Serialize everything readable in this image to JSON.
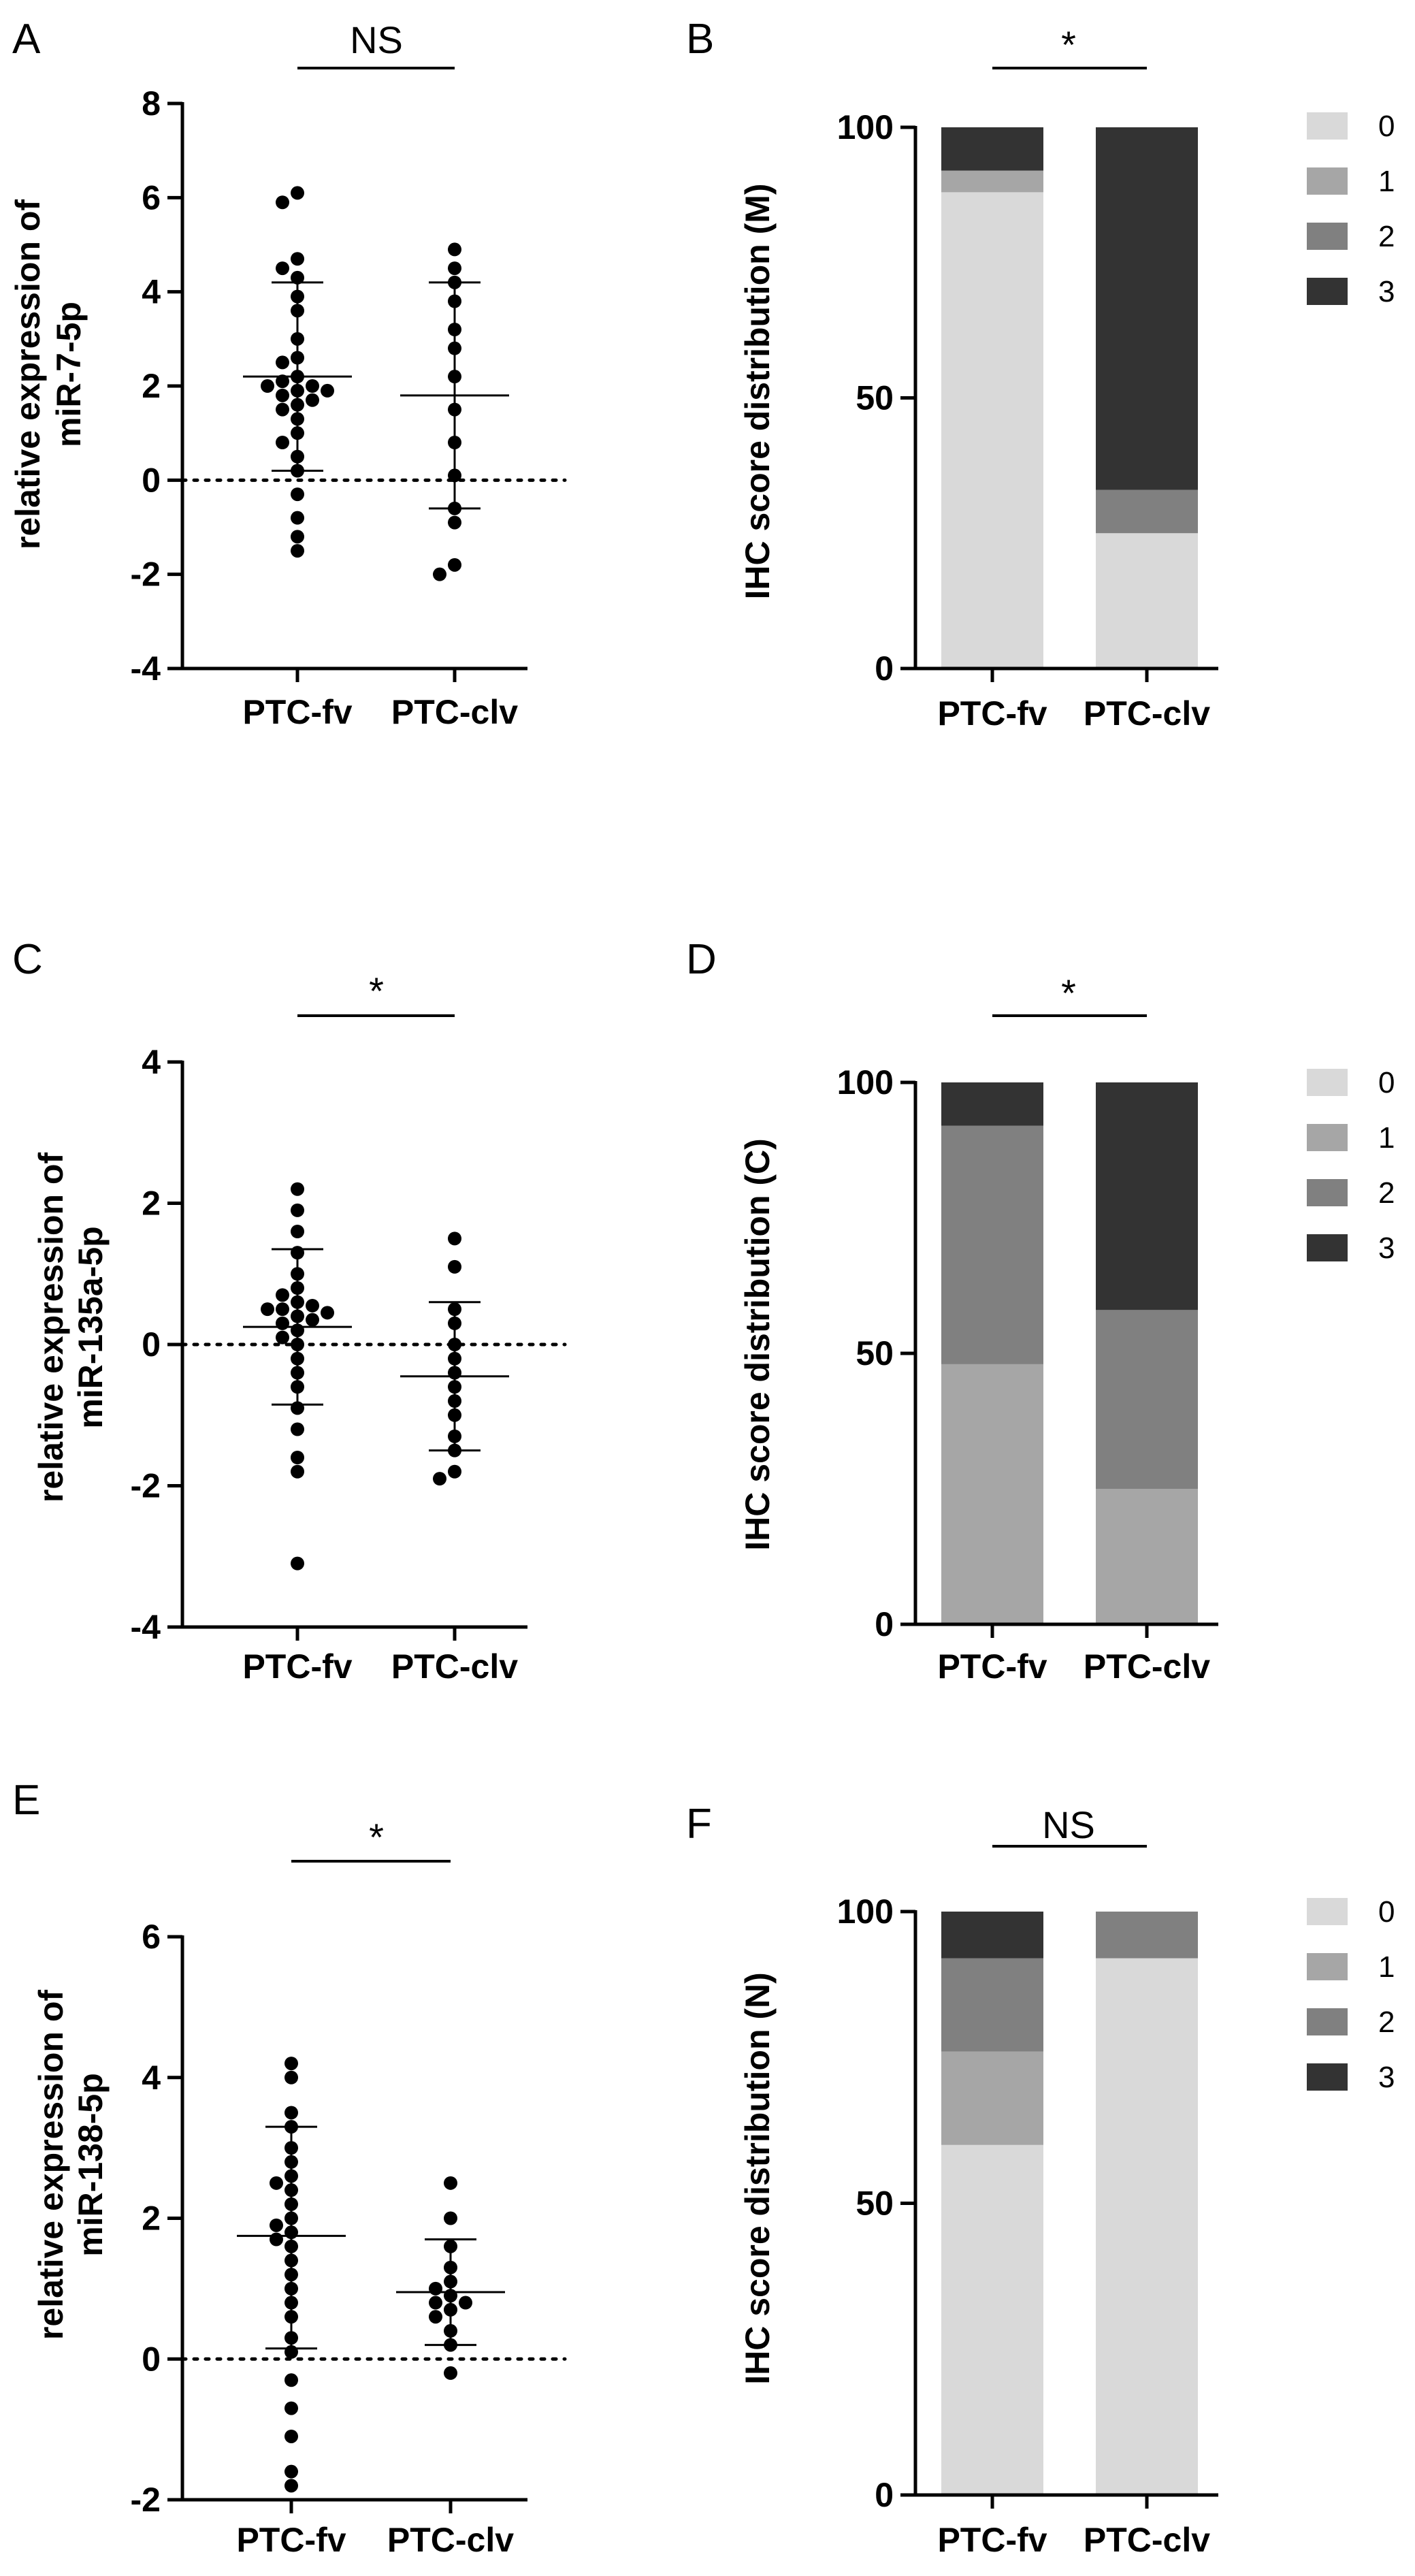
{
  "figure": {
    "colors": {
      "score0": "#d9d9d9",
      "score1": "#a6a6a6",
      "score2": "#808080",
      "score3": "#333333",
      "axis": "#000000"
    }
  },
  "chart_data": [
    {
      "panel": "A",
      "type": "scatter",
      "ylabel": "relative expression of miR-7-5p",
      "ylabel_lines": [
        "relative expression of",
        "miR-7-5p"
      ],
      "categories": [
        "PTC-fv",
        "PTC-clv"
      ],
      "ylim": [
        -4,
        8
      ],
      "yticks": [
        -4,
        -2,
        0,
        2,
        4,
        6,
        8
      ],
      "significance": "NS",
      "groups": [
        {
          "name": "PTC-fv",
          "mean": 2.2,
          "sd_upper": 4.2,
          "sd_lower": 0.2,
          "points": [
            6.1,
            5.9,
            4.7,
            4.5,
            4.3,
            3.9,
            3.6,
            3.0,
            2.6,
            2.5,
            2.2,
            2.1,
            2.0,
            2.0,
            1.9,
            1.9,
            1.8,
            1.7,
            1.6,
            1.5,
            1.3,
            1.0,
            0.8,
            0.5,
            0.2,
            -0.3,
            -0.8,
            -1.2,
            -1.5
          ]
        },
        {
          "name": "PTC-clv",
          "mean": 1.8,
          "sd_upper": 4.2,
          "sd_lower": -0.6,
          "points": [
            4.9,
            4.5,
            4.2,
            3.8,
            3.2,
            2.8,
            2.2,
            1.5,
            0.8,
            0.1,
            -0.6,
            -0.9,
            -1.8,
            -2.0
          ]
        }
      ]
    },
    {
      "panel": "B",
      "type": "bar",
      "ylabel": "IHC score distribution  (M)",
      "categories": [
        "PTC-fv",
        "PTC-clv"
      ],
      "ylim": [
        0,
        100
      ],
      "yticks": [
        0,
        50,
        100
      ],
      "significance": "*",
      "legend": [
        "0",
        "1",
        "2",
        "3"
      ],
      "series": [
        {
          "name": "0",
          "values": [
            88,
            25
          ]
        },
        {
          "name": "1",
          "values": [
            4,
            0
          ]
        },
        {
          "name": "2",
          "values": [
            0,
            8
          ]
        },
        {
          "name": "3",
          "values": [
            8,
            67
          ]
        }
      ]
    },
    {
      "panel": "C",
      "type": "scatter",
      "ylabel": "relative expression of miR-135a-5p",
      "ylabel_lines": [
        "relative expression of",
        "miR-135a-5p"
      ],
      "categories": [
        "PTC-fv",
        "PTC-clv"
      ],
      "ylim": [
        -4,
        4
      ],
      "yticks": [
        -4,
        -2,
        0,
        2,
        4
      ],
      "significance": "*",
      "groups": [
        {
          "name": "PTC-fv",
          "mean": 0.25,
          "sd_upper": 1.35,
          "sd_lower": -0.85,
          "points": [
            2.2,
            1.9,
            1.6,
            1.3,
            1.0,
            0.8,
            0.7,
            0.6,
            0.55,
            0.5,
            0.5,
            0.45,
            0.4,
            0.35,
            0.3,
            0.2,
            0.1,
            0.0,
            -0.2,
            -0.4,
            -0.6,
            -0.9,
            -1.2,
            -1.6,
            -1.8,
            -3.1
          ]
        },
        {
          "name": "PTC-clv",
          "mean": -0.45,
          "sd_upper": 0.6,
          "sd_lower": -1.5,
          "points": [
            1.5,
            1.1,
            0.5,
            0.3,
            0.0,
            -0.2,
            -0.4,
            -0.6,
            -0.8,
            -1.0,
            -1.3,
            -1.5,
            -1.8,
            -1.9
          ]
        }
      ]
    },
    {
      "panel": "D",
      "type": "bar",
      "ylabel": "IHC score distribution  (C)",
      "categories": [
        "PTC-fv",
        "PTC-clv"
      ],
      "ylim": [
        0,
        100
      ],
      "yticks": [
        0,
        50,
        100
      ],
      "significance": "*",
      "legend": [
        "0",
        "1",
        "2",
        "3"
      ],
      "series": [
        {
          "name": "0",
          "values": [
            0,
            0
          ]
        },
        {
          "name": "1",
          "values": [
            48,
            25
          ]
        },
        {
          "name": "2",
          "values": [
            44,
            33
          ]
        },
        {
          "name": "3",
          "values": [
            8,
            42
          ]
        }
      ]
    },
    {
      "panel": "E",
      "type": "scatter",
      "ylabel": "relative expression of miR-138-5p",
      "ylabel_lines": [
        "relative expression of",
        "miR-138-5p"
      ],
      "categories": [
        "PTC-fv",
        "PTC-clv"
      ],
      "ylim": [
        -2,
        6
      ],
      "yticks": [
        -2,
        0,
        2,
        4,
        6
      ],
      "significance": "*",
      "groups": [
        {
          "name": "PTC-fv",
          "mean": 1.75,
          "sd_upper": 3.3,
          "sd_lower": 0.15,
          "points": [
            4.2,
            4.0,
            3.5,
            3.3,
            3.0,
            2.8,
            2.6,
            2.5,
            2.4,
            2.2,
            2.0,
            1.9,
            1.8,
            1.7,
            1.6,
            1.4,
            1.2,
            1.0,
            0.8,
            0.6,
            0.3,
            0.1,
            -0.3,
            -0.7,
            -1.1,
            -1.6,
            -1.8
          ]
        },
        {
          "name": "PTC-clv",
          "mean": 0.95,
          "sd_upper": 1.7,
          "sd_lower": 0.2,
          "points": [
            2.5,
            2.0,
            1.6,
            1.3,
            1.1,
            1.0,
            0.9,
            0.8,
            0.8,
            0.7,
            0.6,
            0.4,
            0.2,
            -0.2
          ]
        }
      ]
    },
    {
      "panel": "F",
      "type": "bar",
      "ylabel": "IHC score distribution  (N)",
      "categories": [
        "PTC-fv",
        "PTC-clv"
      ],
      "ylim": [
        0,
        100
      ],
      "yticks": [
        0,
        50,
        100
      ],
      "significance": "NS",
      "legend": [
        "0",
        "1",
        "2",
        "3"
      ],
      "series": [
        {
          "name": "0",
          "values": [
            60,
            92
          ]
        },
        {
          "name": "1",
          "values": [
            16,
            0
          ]
        },
        {
          "name": "2",
          "values": [
            16,
            8
          ]
        },
        {
          "name": "3",
          "values": [
            8,
            0
          ]
        }
      ]
    }
  ]
}
